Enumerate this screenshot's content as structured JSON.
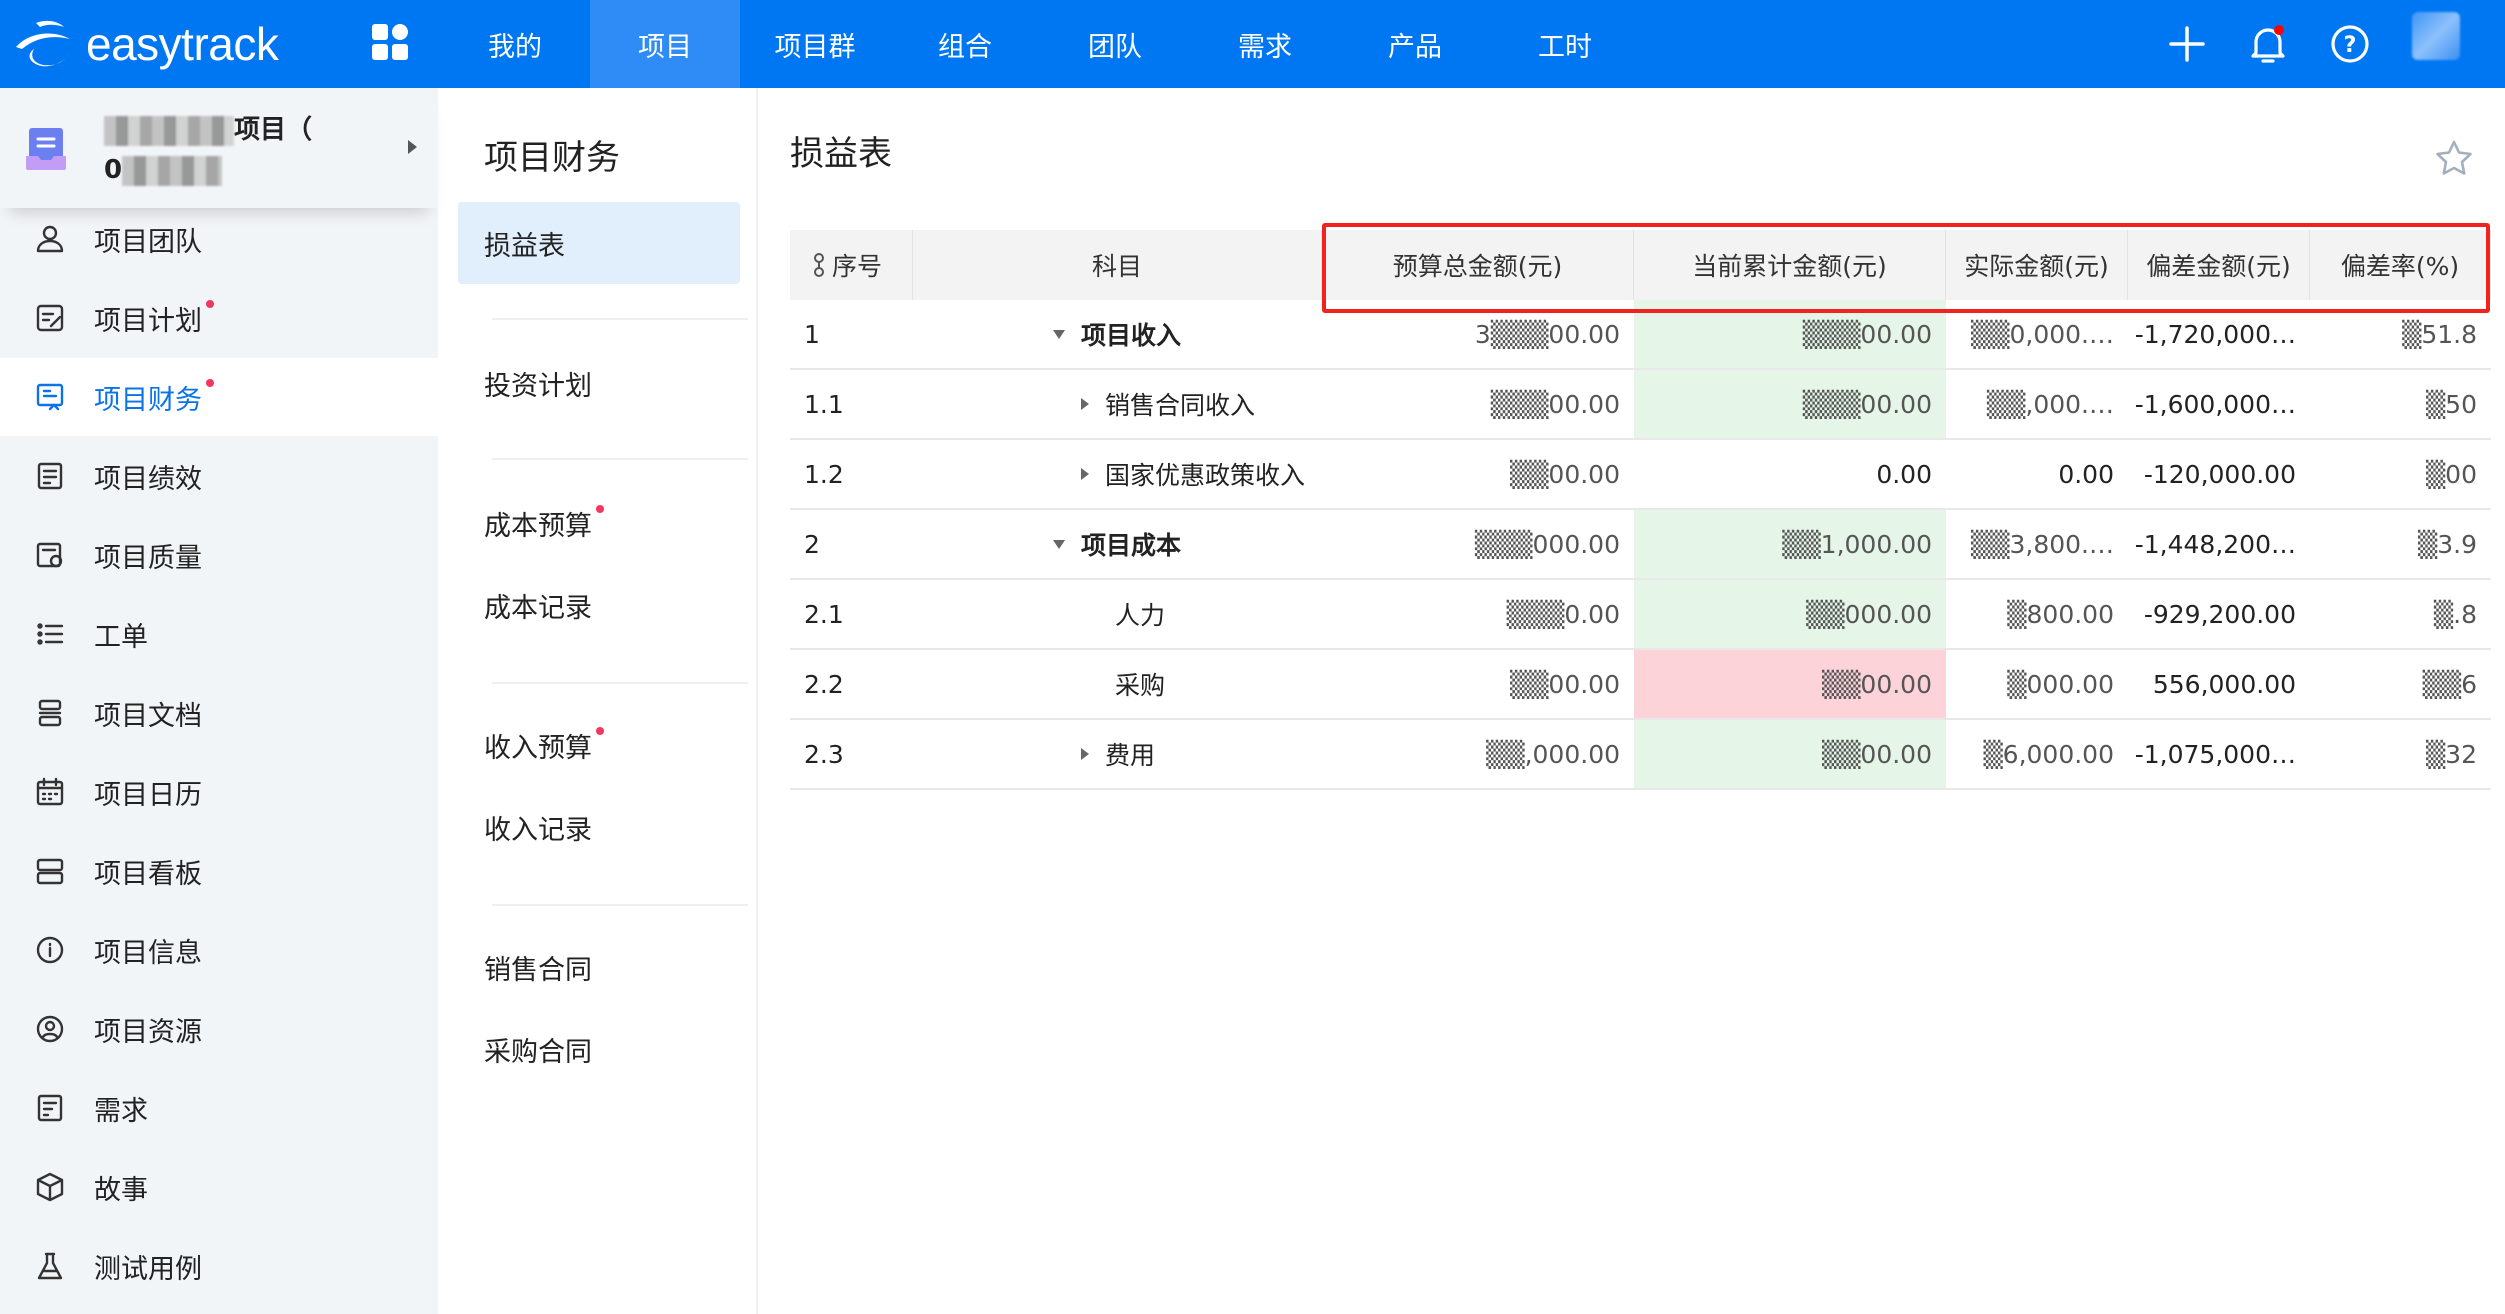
{
  "app": {
    "logo_text": "easytrack",
    "brand_color": "#0077f2"
  },
  "topnav": {
    "items": [
      {
        "label": "我的"
      },
      {
        "label": "项目",
        "active": true
      },
      {
        "label": "项目群"
      },
      {
        "label": "组合"
      },
      {
        "label": "团队"
      },
      {
        "label": "需求"
      },
      {
        "label": "产品"
      },
      {
        "label": "工时"
      }
    ],
    "icons": [
      "apps-grid-icon",
      "plus-icon",
      "bell-icon",
      "help-icon",
      "avatar"
    ]
  },
  "project": {
    "name_suffix": "项目（",
    "name_line2": "0"
  },
  "sidebar": {
    "items": [
      {
        "label": "项目团队",
        "icon": "team-icon"
      },
      {
        "label": "项目计划",
        "icon": "plan-icon",
        "dot": true
      },
      {
        "label": "项目财务",
        "icon": "finance-icon",
        "dot": true,
        "active": true
      },
      {
        "label": "项目绩效",
        "icon": "performance-icon"
      },
      {
        "label": "项目质量",
        "icon": "quality-icon"
      },
      {
        "label": "工单",
        "icon": "list-icon"
      },
      {
        "label": "项目文档",
        "icon": "document-icon"
      },
      {
        "label": "项目日历",
        "icon": "calendar-icon"
      },
      {
        "label": "项目看板",
        "icon": "board-icon"
      },
      {
        "label": "项目信息",
        "icon": "info-icon"
      },
      {
        "label": "项目资源",
        "icon": "resource-icon"
      },
      {
        "label": "需求",
        "icon": "requirement-icon"
      },
      {
        "label": "故事",
        "icon": "cube-icon"
      },
      {
        "label": "测试用例",
        "icon": "flask-icon"
      }
    ]
  },
  "subnav": {
    "title": "项目财务",
    "items": [
      {
        "label": "损益表",
        "active": true
      },
      {
        "label": "投资计划"
      },
      {
        "label": "成本预算",
        "dot": true
      },
      {
        "label": "成本记录"
      },
      {
        "label": "收入预算",
        "dot": true
      },
      {
        "label": "收入记录"
      },
      {
        "label": "销售合同"
      },
      {
        "label": "采购合同"
      }
    ]
  },
  "main": {
    "title": "损益表",
    "table": {
      "columns": [
        "序号",
        "科目",
        "预算总金额(元)",
        "当前累计金额(元)",
        "实际金额(元)",
        "偏差金额(元)",
        "偏差率(%)"
      ],
      "rows": [
        {
          "no": "1",
          "subject": "项目收入",
          "bold": true,
          "toggle": "expanded",
          "budget": "3▒▒▒00.00",
          "current": "▒▒▒00.00",
          "current_status": "green",
          "actual": "▒▒0,000.…",
          "deviation": "-1,720,000…",
          "rate": "▒51.8"
        },
        {
          "no": "1.1",
          "subject": "销售合同收入",
          "toggle": "collapsed",
          "budget": "▒▒▒00.00",
          "current": "▒▒▒00.00",
          "current_status": "green",
          "actual": "▒▒,000.…",
          "deviation": "-1,600,000…",
          "rate": "▒50"
        },
        {
          "no": "1.2",
          "subject": "国家优惠政策收入",
          "toggle": "collapsed",
          "budget": "▒▒00.00",
          "current": "0.00",
          "current_status": "none",
          "actual": "0.00",
          "deviation": "-120,000.00",
          "rate": "▒00"
        },
        {
          "no": "2",
          "subject": "项目成本",
          "bold": true,
          "toggle": "expanded",
          "budget": "▒▒▒000.00",
          "current": "▒▒1,000.00",
          "current_status": "green",
          "actual": "▒▒3,800.…",
          "deviation": "-1,448,200…",
          "rate": "▒3.9"
        },
        {
          "no": "2.1",
          "subject": "人力",
          "budget": "▒▒▒0.00",
          "current": "▒▒000.00",
          "current_status": "green",
          "actual": "▒800.00",
          "deviation": "-929,200.00",
          "rate": "▒.8"
        },
        {
          "no": "2.2",
          "subject": "采购",
          "budget": "▒▒00.00",
          "current": "▒▒00.00",
          "current_status": "red",
          "actual": "▒000.00",
          "deviation": "556,000.00",
          "rate": "▒▒6"
        },
        {
          "no": "2.3",
          "subject": "费用",
          "toggle": "collapsed",
          "budget": "▒▒,000.00",
          "current": "▒▒00.00",
          "current_status": "green",
          "actual": "▒6,000.00",
          "deviation": "-1,075,000…",
          "rate": "▒32"
        }
      ]
    }
  },
  "colors": {
    "over_budget": "#fdd3da",
    "within_budget": "#e5f6e8",
    "highlight_box": "#f0231e",
    "active": "#0a73e8"
  }
}
